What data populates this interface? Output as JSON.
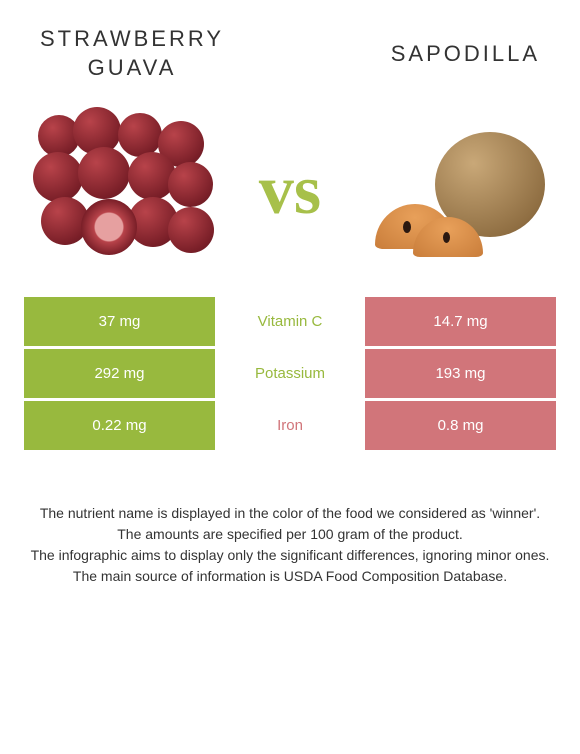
{
  "header": {
    "left_title_line1": "STRAWBERRY",
    "left_title_line2": "GUAVA",
    "right_title": "SAPODILLA"
  },
  "vs_label": "vs",
  "colors": {
    "left_food": "#98b93e",
    "right_food": "#d1757a",
    "row_label_winner_left": "#98b93e",
    "row_label_winner_right": "#d1757a"
  },
  "rows": [
    {
      "nutrient": "Vitamin C",
      "left_value": "37 mg",
      "right_value": "14.7 mg",
      "winner": "left"
    },
    {
      "nutrient": "Potassium",
      "left_value": "292 mg",
      "right_value": "193 mg",
      "winner": "left"
    },
    {
      "nutrient": "Iron",
      "left_value": "0.22 mg",
      "right_value": "0.8 mg",
      "winner": "right"
    }
  ],
  "notes": [
    "The nutrient name is displayed in the color of the food we considered as 'winner'.",
    "The amounts are specified per 100 gram of the product.",
    "The infographic aims to display only the significant differences, ignoring minor ones.",
    "The main source of information is USDA Food Composition Database."
  ]
}
